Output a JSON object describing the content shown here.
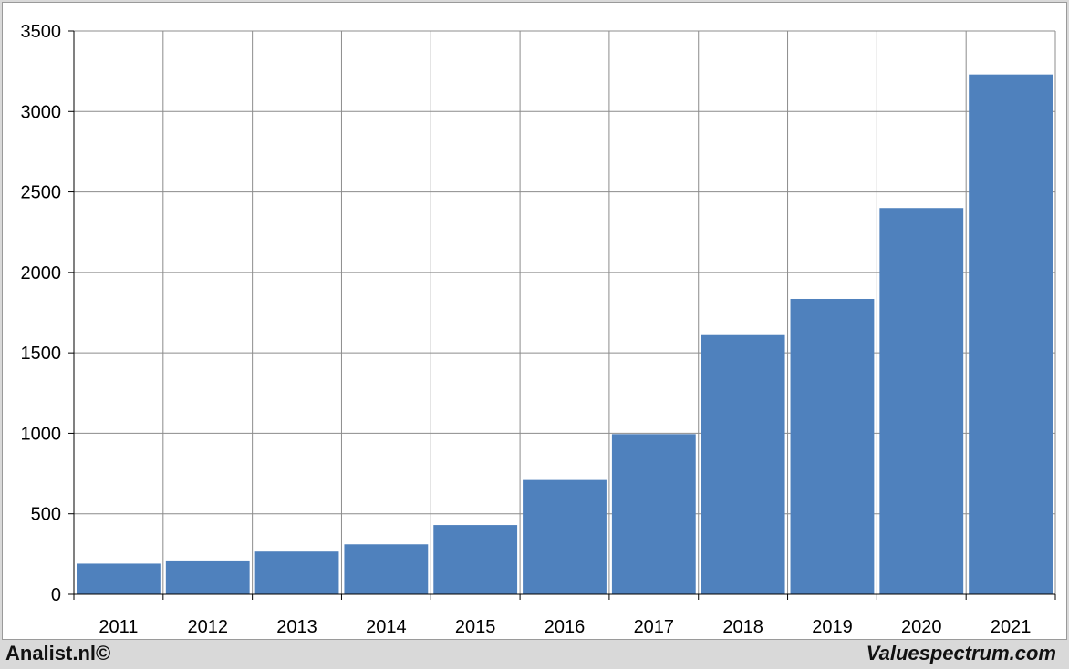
{
  "chart_data": {
    "type": "bar",
    "categories": [
      "2011",
      "2012",
      "2013",
      "2014",
      "2015",
      "2016",
      "2017",
      "2018",
      "2019",
      "2020",
      "2021"
    ],
    "values": [
      190,
      210,
      265,
      310,
      430,
      710,
      995,
      1610,
      1835,
      2400,
      3230
    ],
    "yticks": [
      "0",
      "500",
      "1000",
      "1500",
      "2000",
      "2500",
      "3000",
      "3500"
    ],
    "ylim": [
      0,
      3500
    ],
    "grid": true,
    "bar_color": "#4f81bd"
  },
  "footer": {
    "left": "Analist.nl©",
    "right": "Valuespectrum.com"
  }
}
